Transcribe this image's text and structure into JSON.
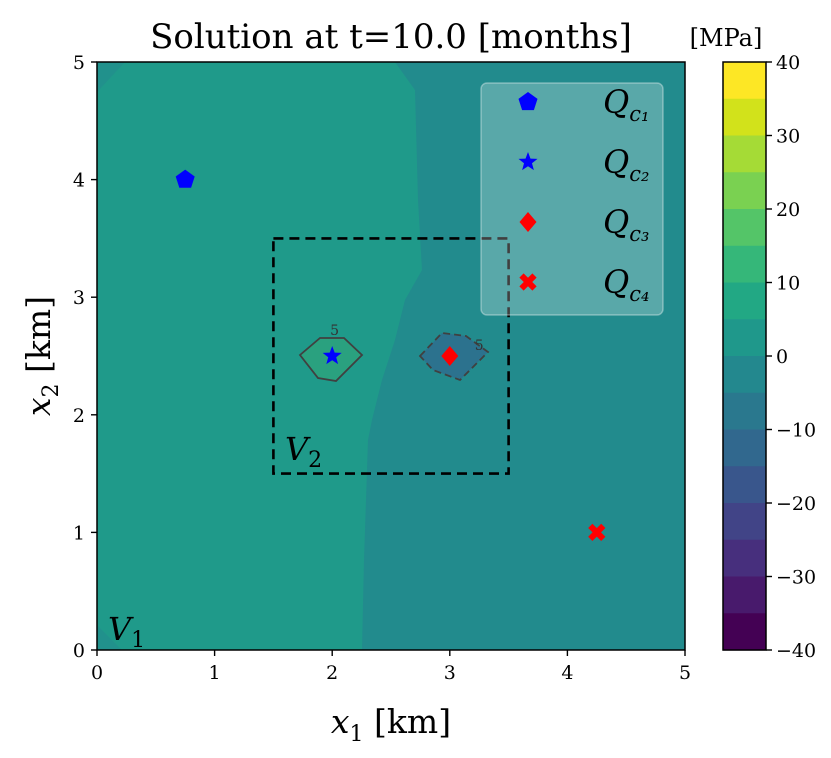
{
  "chart_data": {
    "type": "contour",
    "title": "Solution at t=10.0 [months]",
    "xlabel_var": "x",
    "xlabel_sub": "1",
    "xlabel_unit": " [km]",
    "ylabel_var": "x",
    "ylabel_sub": "2",
    "ylabel_unit": " [km]",
    "xlim": [
      0,
      5
    ],
    "ylim": [
      0,
      5
    ],
    "xticks": [
      "0",
      "1",
      "2",
      "3",
      "4",
      "5"
    ],
    "yticks": [
      "0",
      "1",
      "2",
      "3",
      "4",
      "5"
    ],
    "colorbar": {
      "label": "[MPa]",
      "range": [
        -40,
        40
      ],
      "ticks": [
        "40",
        "30",
        "20",
        "10",
        "0",
        "−10",
        "−20",
        "−30",
        "−40"
      ],
      "colormap": "viridis"
    },
    "regions": [
      {
        "label_var": "V",
        "label_sub": "1",
        "value": 5
      },
      {
        "label_var": "V",
        "label_sub": "2",
        "value": 0,
        "box": {
          "x0": 1.5,
          "x1": 3.5,
          "y0": 1.5,
          "y1": 3.5
        }
      }
    ],
    "contour_labels": [
      {
        "text": "5",
        "x": 2.02,
        "y": 2.68
      },
      {
        "text": "5",
        "x": 3.25,
        "y": 2.55
      }
    ],
    "points": [
      {
        "name_var": "Q",
        "name_sub": "c₁",
        "x": 0.75,
        "y": 4.0,
        "marker": "pentagon",
        "color": "#0000ff"
      },
      {
        "name_var": "Q",
        "name_sub": "c₂",
        "x": 2.0,
        "y": 2.5,
        "marker": "star",
        "color": "#0000ff"
      },
      {
        "name_var": "Q",
        "name_sub": "c₃",
        "x": 3.0,
        "y": 2.5,
        "marker": "diamond",
        "color": "#ff0000"
      },
      {
        "name_var": "Q",
        "name_sub": "c₄",
        "x": 4.25,
        "y": 1.0,
        "marker": "x",
        "color": "#ff0000"
      }
    ],
    "legend_position": "top-right"
  }
}
